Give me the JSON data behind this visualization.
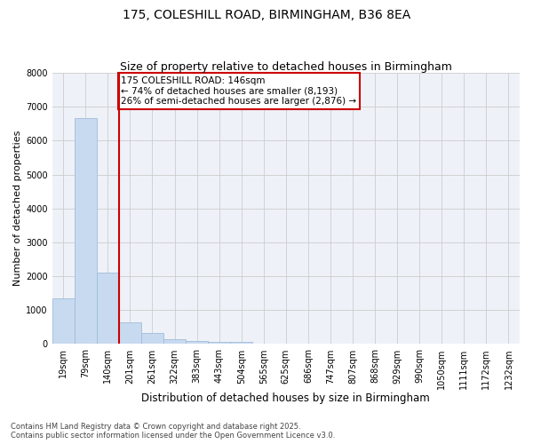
{
  "title1": "175, COLESHILL ROAD, BIRMINGHAM, B36 8EA",
  "title2": "Size of property relative to detached houses in Birmingham",
  "xlabel": "Distribution of detached houses by size in Birmingham",
  "ylabel": "Number of detached properties",
  "categories": [
    "19sqm",
    "79sqm",
    "140sqm",
    "201sqm",
    "261sqm",
    "322sqm",
    "383sqm",
    "443sqm",
    "504sqm",
    "565sqm",
    "625sqm",
    "686sqm",
    "747sqm",
    "807sqm",
    "868sqm",
    "929sqm",
    "990sqm",
    "1050sqm",
    "1111sqm",
    "1172sqm",
    "1232sqm"
  ],
  "values": [
    1340,
    6660,
    2100,
    640,
    315,
    140,
    100,
    70,
    70,
    0,
    0,
    0,
    0,
    0,
    0,
    0,
    0,
    0,
    0,
    0,
    0
  ],
  "bar_color": "#c8daf0",
  "bar_edge_color": "#a0bcd8",
  "vline_x": 2.5,
  "vline_color": "#cc0000",
  "annotation_text": "175 COLESHILL ROAD: 146sqm\n← 74% of detached houses are smaller (8,193)\n26% of semi-detached houses are larger (2,876) →",
  "annotation_box_color": "#cc0000",
  "ylim": [
    0,
    8000
  ],
  "yticks": [
    0,
    1000,
    2000,
    3000,
    4000,
    5000,
    6000,
    7000,
    8000
  ],
  "grid_color": "#cccccc",
  "bg_color": "#eef2f8",
  "footnote": "Contains HM Land Registry data © Crown copyright and database right 2025.\nContains public sector information licensed under the Open Government Licence v3.0.",
  "title1_fontsize": 10,
  "title2_fontsize": 9,
  "xlabel_fontsize": 8.5,
  "ylabel_fontsize": 8,
  "tick_fontsize": 7,
  "annotation_fontsize": 7.5,
  "footnote_fontsize": 6
}
